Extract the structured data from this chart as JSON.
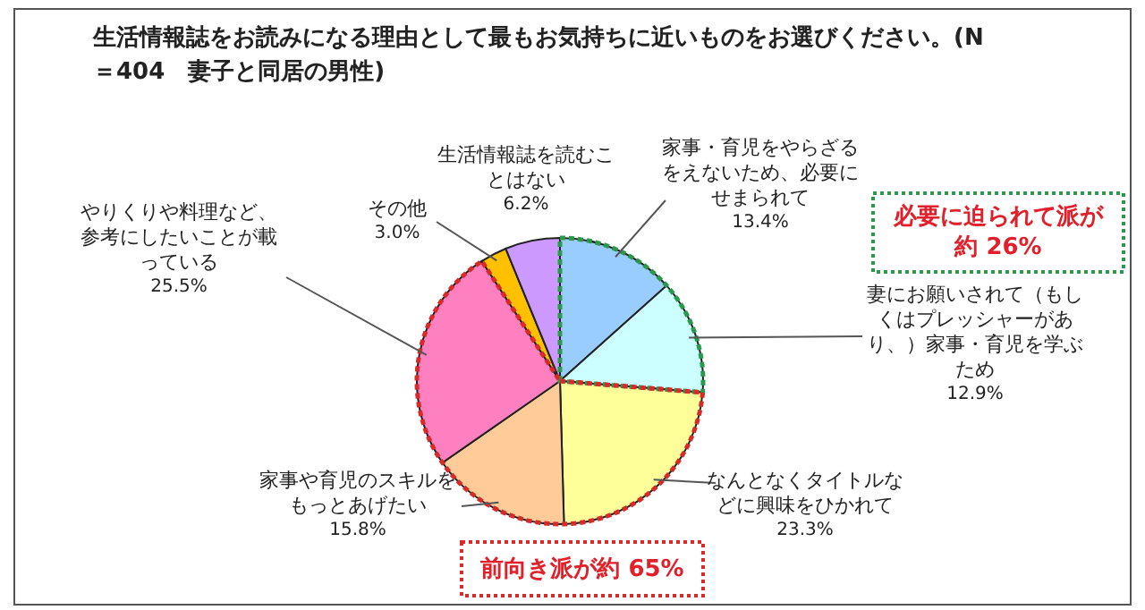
{
  "chart_data": {
    "type": "pie",
    "title": "生活情報誌をお読みになる理由として最もお気持ちに近いものをお選びください。(N＝404　妻子と同居の男性)",
    "categories": [
      "家事・育児をやらざるをえないため、必要にせまられて",
      "妻にお願いされて（もしくはプレッシャーがあり、）家事・育児を学ぶため",
      "なんとなくタイトルなどに興味をひかれて",
      "家事や育児のスキルをもっとあげたい",
      "やりくりや料理など、参考にしたいことが載っている",
      "その他",
      "生活情報誌を読むことはない"
    ],
    "values": [
      13.4,
      12.9,
      23.3,
      15.8,
      25.5,
      3.0,
      6.2
    ],
    "value_labels": [
      "13.4%",
      "12.9%",
      "23.3%",
      "15.8%",
      "25.5%",
      "3.0%",
      "6.2%"
    ],
    "colors": [
      "#99ccff",
      "#ccffff",
      "#ffff99",
      "#ffcc99",
      "#ff80c0",
      "#ffc000",
      "#cc99ff"
    ],
    "annotations": [
      "必要に迫られて派が約 26%",
      "前向き派が約 65%"
    ]
  }
}
